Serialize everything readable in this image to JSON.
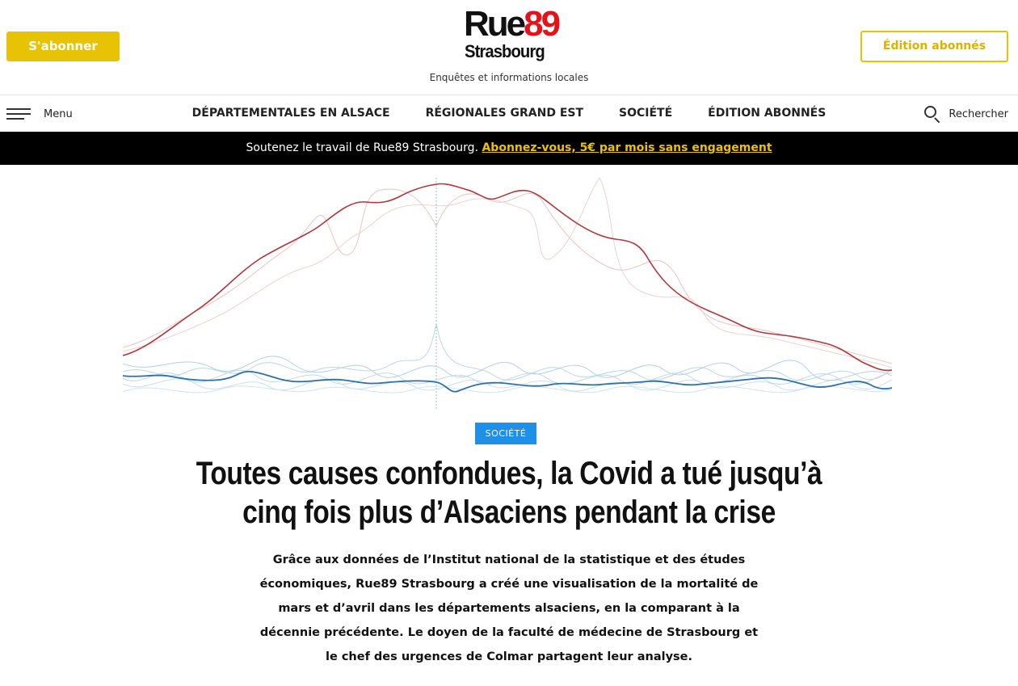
{
  "header": {
    "subscribe_label": "S'abonner",
    "edition_label": "Édition abonnés",
    "logo": {
      "line1_a": "Rue",
      "line1_b": "89",
      "line2": "Strasbourg"
    },
    "tagline": "Enquêtes et informations locales"
  },
  "nav": {
    "menu_label": "Menu",
    "links": [
      {
        "label": "DÉPARTEMENTALES EN ALSACE"
      },
      {
        "label": "RÉGIONALES GRAND EST"
      },
      {
        "label": "SOCIÉTÉ"
      },
      {
        "label": "ÉDITION ABONNÉS"
      }
    ],
    "search_label": "Rechercher"
  },
  "banner": {
    "text": "Soutenez le travail de Rue89 Strasbourg. ",
    "link": "Abonnez-vous, 5€ par mois sans engagement"
  },
  "colors": {
    "accent_yellow": "#e8c205",
    "logo_red": "#e3131b",
    "badge_blue": "#1e90e8",
    "series_red": "#b0373a",
    "series_blue": "#2f6fa8"
  },
  "article": {
    "category": "SOCIÉTÉ",
    "title": "Toutes causes confondues, la Covid a tué jusqu’à cinq fois plus d’Alsaciens pendant la crise",
    "lede": "Grâce aux données de l’Institut national de la statistique et des études économiques, Rue89 Strasbourg a créé une visualisation de la mortalité de mars et d’avril dans les départements alsaciens, en la comparant à la décennie précédente. Le doyen de la faculté de médecine de Strasbourg et le chef des urgences de Colmar partagent leur analyse."
  }
}
